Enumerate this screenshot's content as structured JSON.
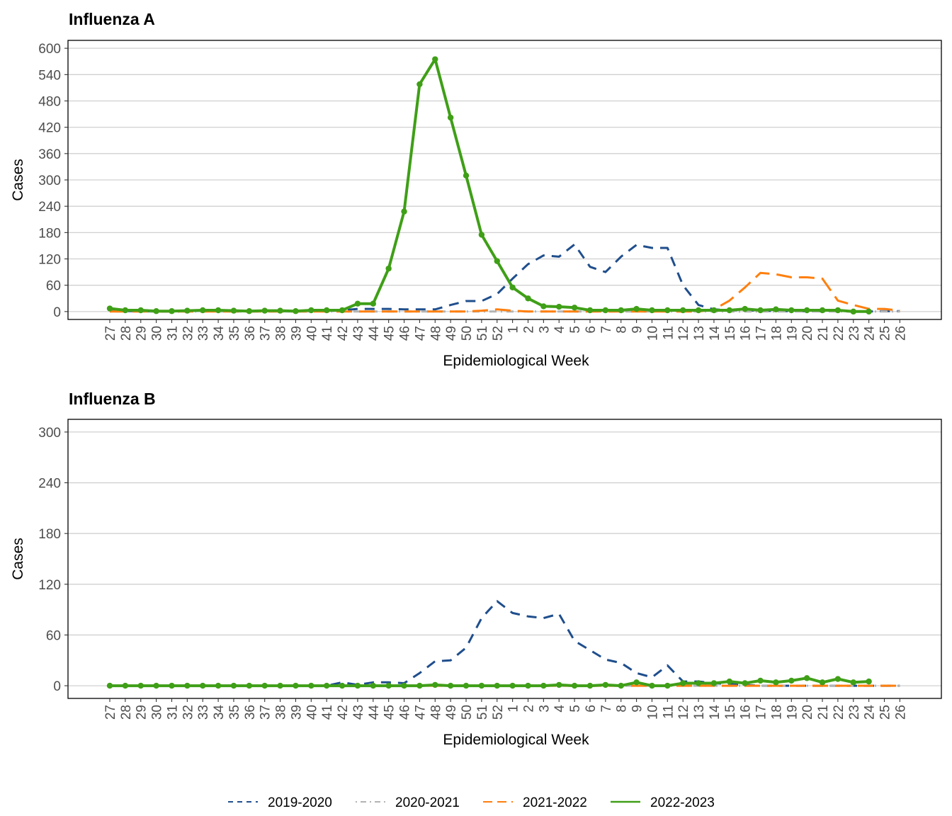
{
  "chart_data": [
    {
      "type": "line",
      "title": "Influenza A",
      "xlabel": "Epidemiological Week",
      "ylabel": "Cases",
      "ylim": [
        -18,
        618
      ],
      "yticks": [
        0,
        60,
        120,
        180,
        240,
        300,
        360,
        420,
        480,
        540,
        600
      ],
      "categories": [
        "27",
        "28",
        "29",
        "30",
        "31",
        "32",
        "33",
        "34",
        "35",
        "36",
        "37",
        "38",
        "39",
        "40",
        "41",
        "42",
        "43",
        "44",
        "45",
        "46",
        "47",
        "48",
        "49",
        "50",
        "51",
        "52",
        "1",
        "2",
        "3",
        "4",
        "5",
        "6",
        "7",
        "8",
        "9",
        "10",
        "11",
        "12",
        "13",
        "14",
        "15",
        "16",
        "17",
        "18",
        "19",
        "20",
        "21",
        "22",
        "23",
        "24",
        "25",
        "26"
      ],
      "grid": "horizontal",
      "series": [
        {
          "name": "2019-2020",
          "color": "#1f4e8c",
          "dash": "dashed",
          "values": [
            1,
            1,
            1,
            0,
            0,
            1,
            2,
            1,
            1,
            1,
            1,
            1,
            0,
            1,
            1,
            3,
            6,
            6,
            6,
            5,
            5,
            5,
            15,
            24,
            24,
            40,
            75,
            108,
            128,
            125,
            153,
            102,
            90,
            125,
            152,
            145,
            145,
            60,
            15,
            5,
            3,
            3,
            2,
            1,
            1,
            1,
            1,
            1,
            0,
            0,
            1,
            1
          ]
        },
        {
          "name": "2020-2021",
          "color": "#b3b3b3",
          "dash": "dotdash",
          "values": [
            0,
            0,
            0,
            0,
            0,
            0,
            0,
            0,
            0,
            0,
            0,
            0,
            0,
            0,
            0,
            0,
            0,
            0,
            0,
            0,
            0,
            0,
            0,
            0,
            0,
            0,
            0,
            0,
            0,
            0,
            0,
            0,
            0,
            0,
            0,
            0,
            0,
            0,
            0,
            0,
            0,
            0,
            0,
            0,
            0,
            0,
            0,
            0,
            0,
            0,
            0,
            0
          ]
        },
        {
          "name": "2021-2022",
          "color": "#ff7f0e",
          "dash": "longdash",
          "values": [
            0,
            0,
            0,
            0,
            0,
            0,
            0,
            0,
            0,
            0,
            0,
            0,
            0,
            0,
            0,
            0,
            0,
            0,
            0,
            0,
            0,
            0,
            0,
            0,
            2,
            5,
            2,
            0,
            0,
            0,
            0,
            0,
            0,
            0,
            0,
            0,
            0,
            0,
            0,
            5,
            25,
            55,
            88,
            85,
            78,
            78,
            75,
            25,
            15,
            6,
            6,
            2
          ]
        },
        {
          "name": "2022-2023",
          "color": "#3f9f17",
          "dash": "solid",
          "values": [
            7,
            3,
            3,
            1,
            1,
            2,
            3,
            3,
            2,
            1,
            2,
            2,
            1,
            3,
            3,
            3,
            18,
            18,
            98,
            228,
            518,
            575,
            442,
            310,
            175,
            115,
            55,
            30,
            12,
            11,
            9,
            3,
            3,
            3,
            6,
            3,
            3,
            3,
            3,
            3,
            3,
            6,
            3,
            5,
            3,
            3,
            3,
            3,
            0,
            0,
            null,
            null
          ]
        }
      ]
    },
    {
      "type": "line",
      "title": "Influenza B",
      "xlabel": "Epidemiological Week",
      "ylabel": "Cases",
      "ylim": [
        -15,
        315
      ],
      "yticks": [
        0,
        60,
        120,
        180,
        240,
        300
      ],
      "categories": [
        "27",
        "28",
        "29",
        "30",
        "31",
        "32",
        "33",
        "34",
        "35",
        "36",
        "37",
        "38",
        "39",
        "40",
        "41",
        "42",
        "43",
        "44",
        "45",
        "46",
        "47",
        "48",
        "49",
        "50",
        "51",
        "52",
        "1",
        "2",
        "3",
        "4",
        "5",
        "6",
        "7",
        "8",
        "9",
        "10",
        "11",
        "12",
        "13",
        "14",
        "15",
        "16",
        "17",
        "18",
        "19",
        "20",
        "21",
        "22",
        "23",
        "24",
        "25",
        "26"
      ],
      "grid": "horizontal",
      "series": [
        {
          "name": "2019-2020",
          "color": "#1f4e8c",
          "dash": "dashed",
          "values": [
            0,
            0,
            0,
            0,
            0,
            0,
            0,
            0,
            0,
            0,
            0,
            0,
            0,
            0,
            0,
            4,
            1,
            4,
            4,
            3,
            15,
            29,
            30,
            45,
            80,
            100,
            86,
            82,
            80,
            85,
            53,
            42,
            31,
            27,
            15,
            10,
            24,
            5,
            5,
            3,
            2,
            1,
            0,
            0,
            0,
            0,
            0,
            0,
            0,
            0,
            0,
            0
          ]
        },
        {
          "name": "2020-2021",
          "color": "#b3b3b3",
          "dash": "dotdash",
          "values": [
            0,
            0,
            0,
            0,
            0,
            0,
            0,
            0,
            0,
            0,
            0,
            0,
            0,
            0,
            0,
            0,
            0,
            0,
            0,
            0,
            0,
            0,
            0,
            0,
            0,
            0,
            0,
            0,
            0,
            0,
            0,
            0,
            0,
            0,
            0,
            0,
            0,
            0,
            0,
            0,
            0,
            0,
            0,
            0,
            0,
            0,
            0,
            0,
            0,
            0,
            0,
            0
          ]
        },
        {
          "name": "2021-2022",
          "color": "#ff7f0e",
          "dash": "longdash",
          "values": [
            0,
            0,
            0,
            0,
            0,
            0,
            0,
            0,
            0,
            0,
            0,
            0,
            0,
            0,
            0,
            0,
            0,
            0,
            0,
            0,
            0,
            0,
            0,
            0,
            0,
            0,
            0,
            0,
            0,
            0,
            0,
            0,
            0,
            0,
            0,
            0,
            0,
            0,
            0,
            0,
            0,
            0,
            0,
            0,
            0,
            0,
            0,
            0,
            0,
            0,
            0,
            0
          ]
        },
        {
          "name": "2022-2023",
          "color": "#3f9f17",
          "dash": "solid",
          "values": [
            0,
            0,
            0,
            0,
            0,
            0,
            0,
            0,
            0,
            0,
            0,
            0,
            0,
            0,
            0,
            0,
            0,
            0,
            0,
            0,
            0,
            1,
            0,
            0,
            0,
            0,
            0,
            0,
            0,
            1,
            0,
            0,
            1,
            0,
            4,
            0,
            0,
            3,
            3,
            3,
            5,
            3,
            6,
            4,
            6,
            9,
            4,
            8,
            4,
            5,
            null,
            null
          ]
        }
      ]
    }
  ],
  "legend": {
    "position": "bottom",
    "items": [
      "2019-2020",
      "2020-2021",
      "2021-2022",
      "2022-2023"
    ]
  }
}
